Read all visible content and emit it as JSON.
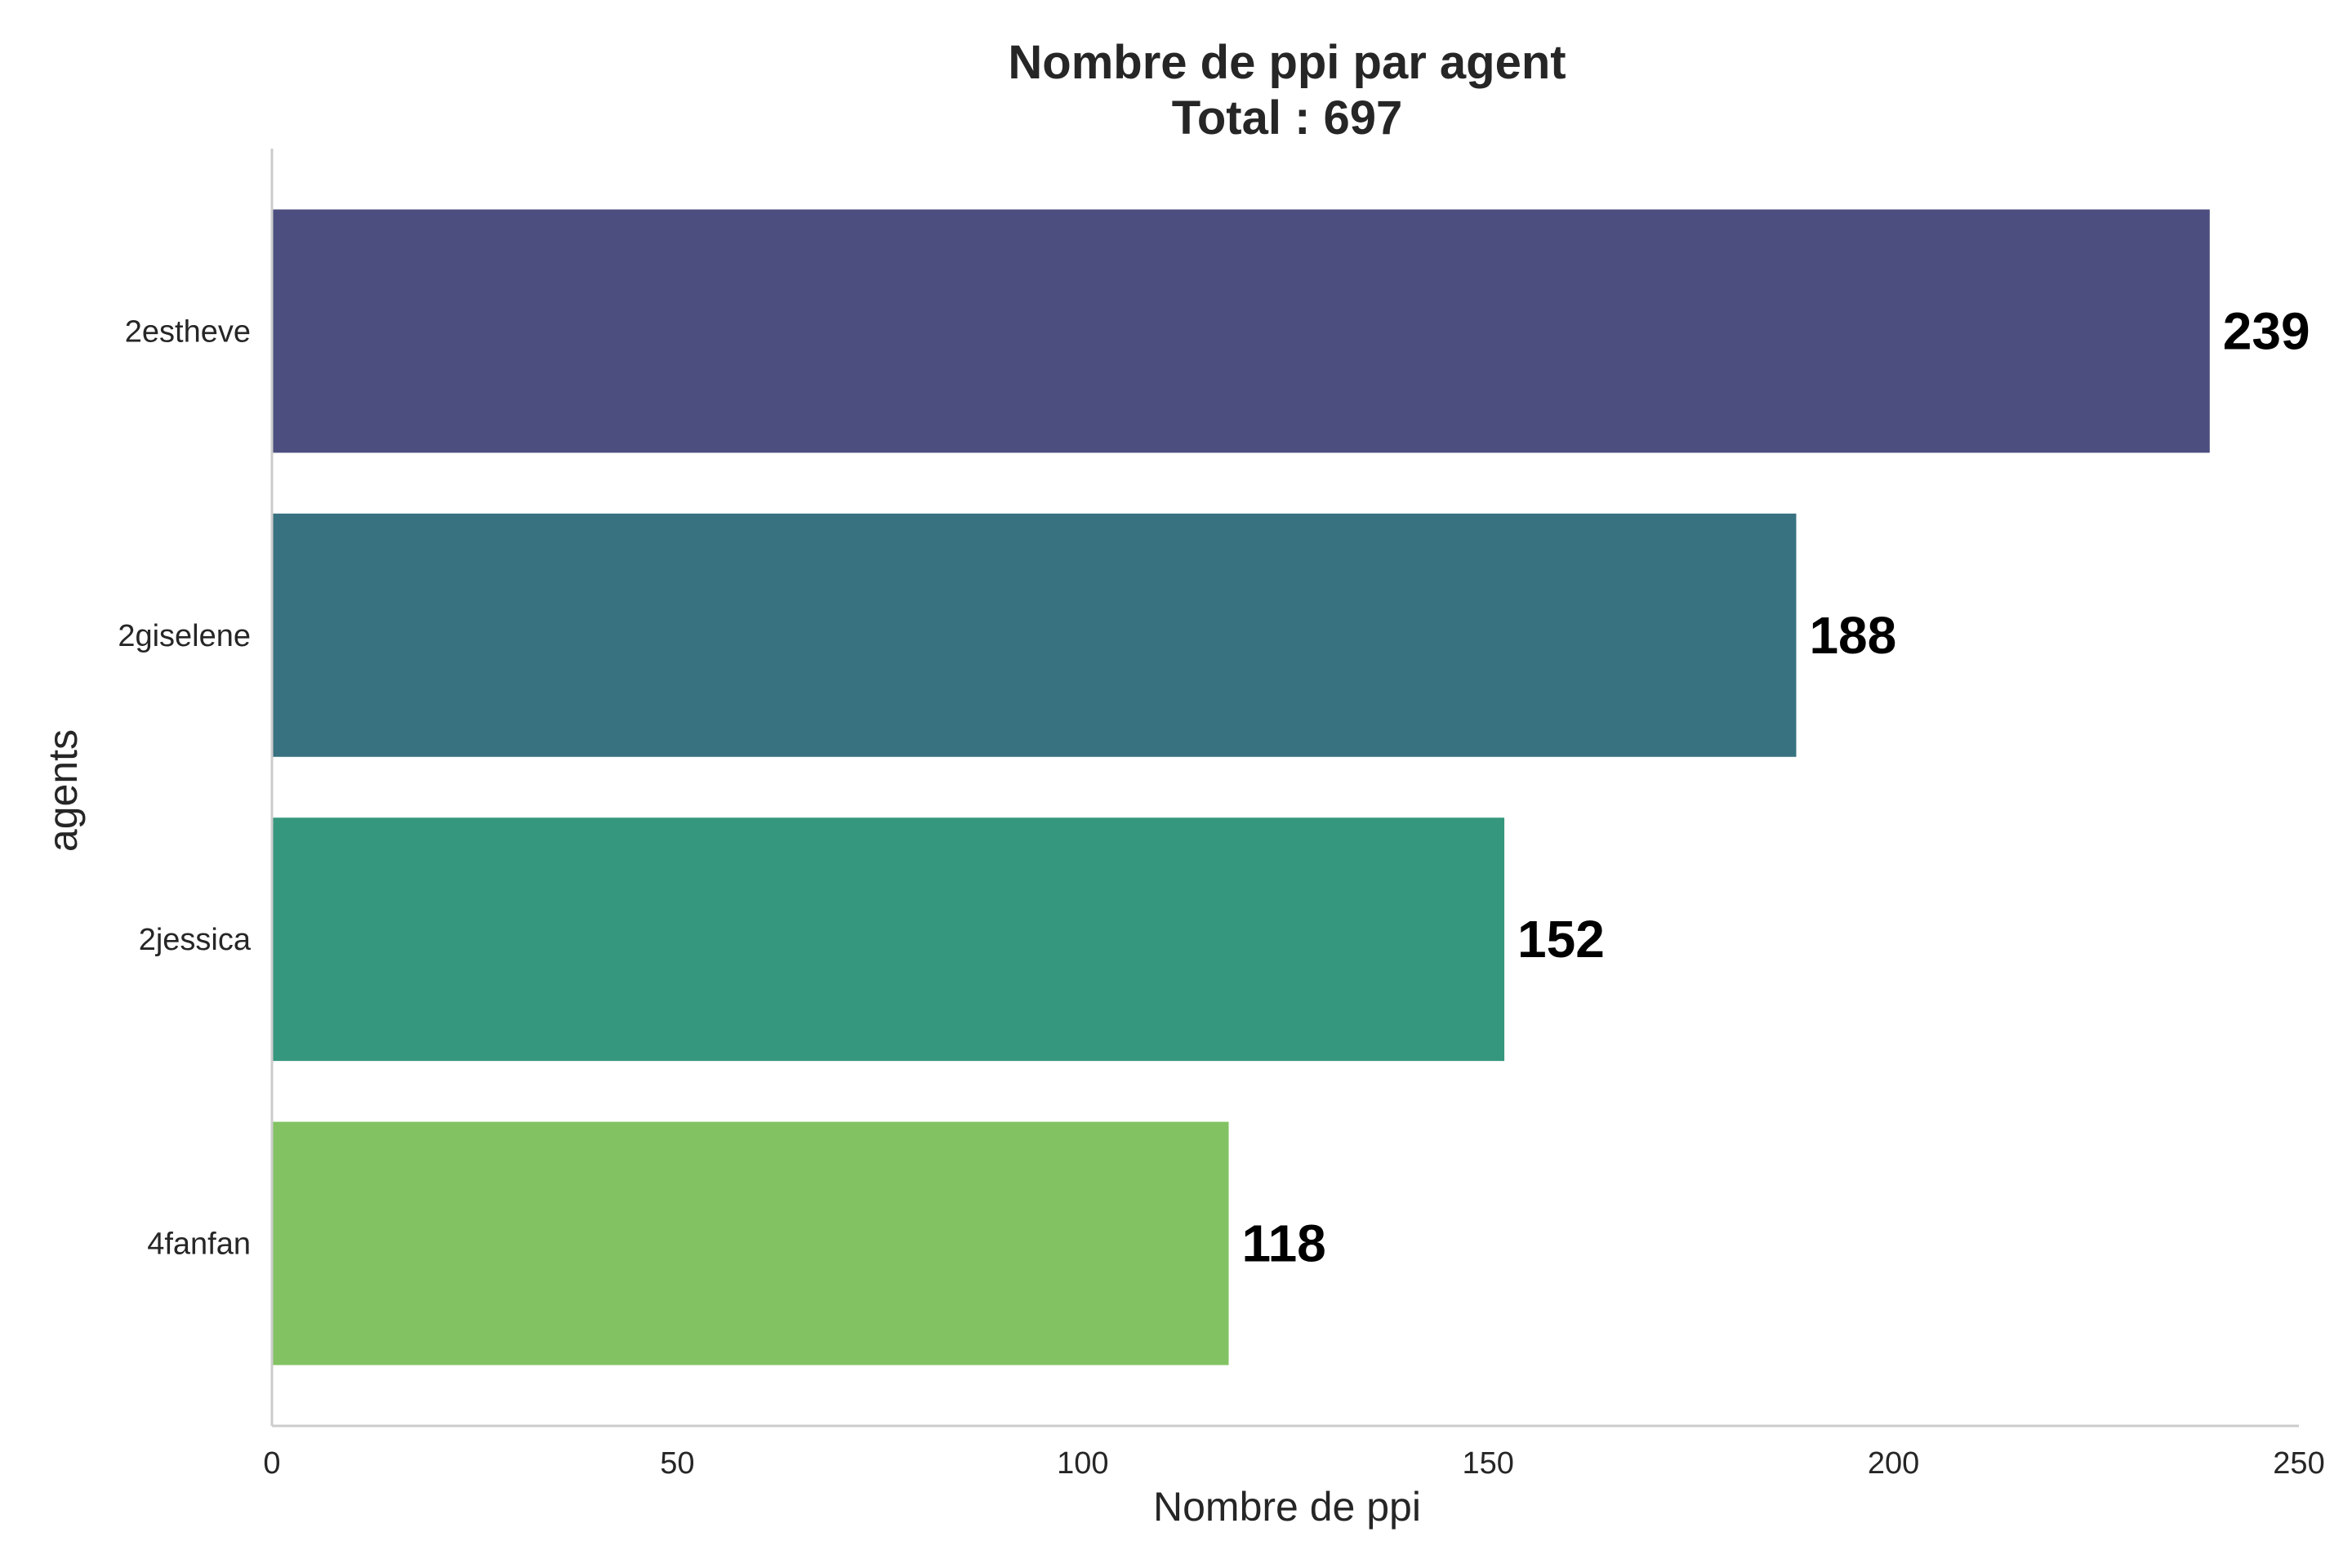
{
  "chart_data": {
    "type": "bar",
    "orientation": "horizontal",
    "title": "Nombre de ppi par agent",
    "subtitle": "Total : 697",
    "xlabel": "Nombre de ppi",
    "ylabel": "agents",
    "categories": [
      "2estheve",
      "2giselene",
      "2jessica",
      "4fanfan"
    ],
    "values": [
      239,
      188,
      152,
      118
    ],
    "value_labels": [
      "239",
      "188",
      "152",
      "118"
    ],
    "colors": [
      "#4b4e7e",
      "#387280",
      "#35977e",
      "#82c263"
    ],
    "xlim": [
      0,
      250
    ],
    "xticks": [
      0,
      50,
      100,
      150,
      200,
      250
    ],
    "xtick_labels": [
      "0",
      "50",
      "100",
      "150",
      "200",
      "250"
    ],
    "grid": false,
    "legend": "none"
  }
}
